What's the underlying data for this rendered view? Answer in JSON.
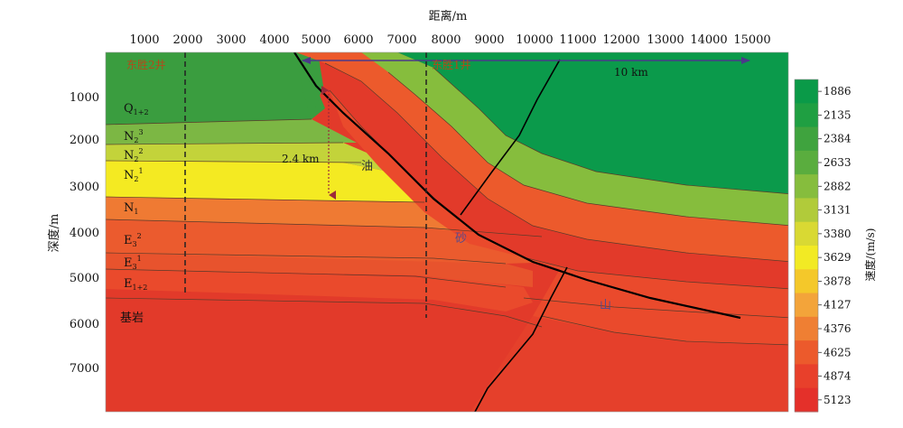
{
  "x_axis": {
    "label": "距离/m",
    "ticks": [
      "1000",
      "2000",
      "3000",
      "4000",
      "5000",
      "6000",
      "7000",
      "8000",
      "9000",
      "10000",
      "11000",
      "12000",
      "13000",
      "14000",
      "15000"
    ]
  },
  "y_axis": {
    "label": "深度/m",
    "ticks": [
      "1000",
      "2000",
      "3000",
      "4000",
      "5000",
      "6000",
      "7000"
    ]
  },
  "wells": [
    {
      "name": "东胜2井"
    },
    {
      "name": "东胜1井"
    }
  ],
  "scale_bar": {
    "label": "10 km"
  },
  "annotations": {
    "depth_span": "2.4 km",
    "oil": "油",
    "sand": "砂",
    "mountain": "山"
  },
  "strata": [
    {
      "base": "Q",
      "sub": "1+2",
      "sup": ""
    },
    {
      "base": "N",
      "sub": "2",
      "sup": "3"
    },
    {
      "base": "N",
      "sub": "2",
      "sup": "2"
    },
    {
      "base": "N",
      "sub": "2",
      "sup": "1"
    },
    {
      "base": "N",
      "sub": "1",
      "sup": ""
    },
    {
      "base": "E",
      "sub": "3",
      "sup": "2"
    },
    {
      "base": "E",
      "sub": "3",
      "sup": "1"
    },
    {
      "base": "E",
      "sub": "1+2",
      "sup": ""
    },
    {
      "base": "基岩",
      "sub": "",
      "sup": ""
    }
  ],
  "colorbar": {
    "label": "速度/(m/s)",
    "ticks": [
      "1886",
      "2135",
      "2384",
      "2633",
      "2882",
      "3131",
      "3380",
      "3629",
      "3878",
      "4127",
      "4376",
      "4625",
      "4874",
      "5123"
    ],
    "colors": [
      "#0a9a48",
      "#1f9f42",
      "#3fa33e",
      "#5aad3e",
      "#86bd3d",
      "#b1cb3a",
      "#d9d933",
      "#f2ea24",
      "#f4c82a",
      "#f3a43a",
      "#ef7f33",
      "#ec5a2c",
      "#e8402b",
      "#e4302a"
    ]
  },
  "colors": {
    "q": "#3a9d3f",
    "n2_3": "#7cb744",
    "n2_2": "#c3d33a",
    "n2_1": "#f4ea22",
    "n1": "#ef7a33",
    "e3_2": "#eb5a2e",
    "e3_1": "#e9502d",
    "e12": "#ea4a2c",
    "basement": "#e23a2a",
    "right_green": "#0b9a4b",
    "well_label": "#b24a1a",
    "arrow": "#4b3a8a",
    "depth_arrow": "#9b2a3a"
  }
}
